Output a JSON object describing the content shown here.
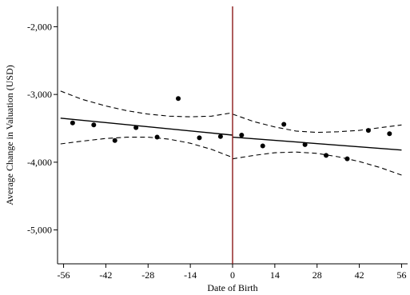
{
  "chart_data": {
    "type": "scatter",
    "title": "",
    "xlabel": "Date of Birth",
    "ylabel": "Average Change in Valuation (USD)",
    "xlim": [
      -58,
      58
    ],
    "ylim": [
      -5500,
      -1700
    ],
    "x_ticks": [
      -56,
      -42,
      -28,
      -14,
      0,
      14,
      28,
      42,
      56
    ],
    "x_tick_labels": [
      "-56",
      "-42",
      "-28",
      "-14",
      "0",
      "14",
      "28",
      "42",
      "56"
    ],
    "y_ticks": [
      -5000,
      -4000,
      -3000,
      -2000
    ],
    "y_tick_labels": [
      "-5,000",
      "-4,000",
      "-3,000",
      "-2,000"
    ],
    "cutoff_x": 0,
    "points": [
      {
        "x": -53,
        "y": -3420
      },
      {
        "x": -46,
        "y": -3450
      },
      {
        "x": -39,
        "y": -3680
      },
      {
        "x": -32,
        "y": -3490
      },
      {
        "x": -25,
        "y": -3630
      },
      {
        "x": -18,
        "y": -3060
      },
      {
        "x": -11,
        "y": -3640
      },
      {
        "x": -4,
        "y": -3620
      },
      {
        "x": 3,
        "y": -3600
      },
      {
        "x": 10,
        "y": -3760
      },
      {
        "x": 17,
        "y": -3440
      },
      {
        "x": 24,
        "y": -3740
      },
      {
        "x": 31,
        "y": -3900
      },
      {
        "x": 38,
        "y": -3950
      },
      {
        "x": 45,
        "y": -3530
      },
      {
        "x": 52,
        "y": -3580
      }
    ],
    "fit_left": {
      "x": [
        -57,
        0
      ],
      "y": [
        -3350,
        -3600
      ]
    },
    "fit_right": {
      "x": [
        0,
        56
      ],
      "y": [
        -3630,
        -3820
      ]
    },
    "ci_left_upper": {
      "x": [
        -57,
        -50,
        -42,
        -35,
        -28,
        -21,
        -14,
        -7,
        0
      ],
      "y": [
        -2950,
        -3070,
        -3170,
        -3240,
        -3290,
        -3320,
        -3330,
        -3320,
        -3270
      ]
    },
    "ci_left_lower": {
      "x": [
        -57,
        -50,
        -42,
        -35,
        -28,
        -21,
        -14,
        -7,
        0
      ],
      "y": [
        -3730,
        -3690,
        -3650,
        -3630,
        -3630,
        -3660,
        -3720,
        -3810,
        -3930
      ]
    },
    "ci_right_upper": {
      "x": [
        0,
        7,
        14,
        21,
        28,
        35,
        42,
        49,
        56
      ],
      "y": [
        -3290,
        -3400,
        -3480,
        -3540,
        -3560,
        -3550,
        -3530,
        -3490,
        -3450
      ]
    },
    "ci_right_lower": {
      "x": [
        0,
        7,
        14,
        21,
        28,
        35,
        42,
        49,
        56
      ],
      "y": [
        -3950,
        -3900,
        -3860,
        -3850,
        -3870,
        -3920,
        -3990,
        -4080,
        -4190
      ]
    },
    "colors": {
      "points": "#000000",
      "fit": "#000000",
      "ci": "#000000",
      "cutoff": "#8b1a1a",
      "axis": "#000000"
    },
    "grid": false,
    "legend": "none"
  }
}
